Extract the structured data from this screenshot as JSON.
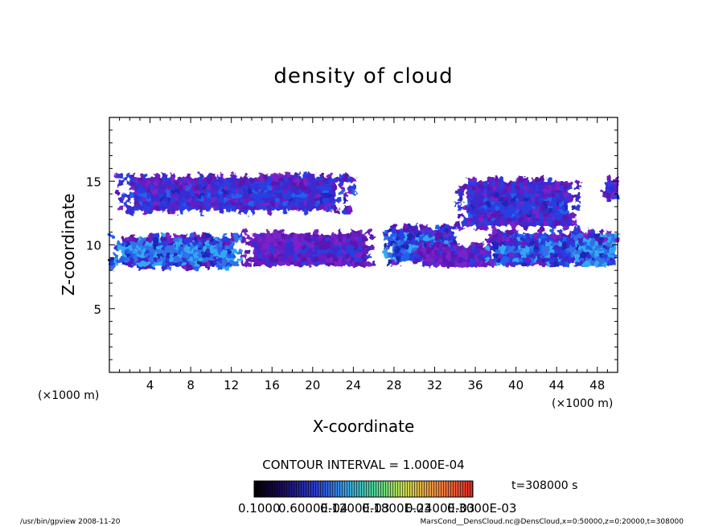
{
  "chart_data": {
    "type": "heatmap",
    "title": "density of cloud",
    "xlabel": "X-coordinate",
    "ylabel": "Z-coordinate",
    "x_unit": "(×1000 m)",
    "y_unit": "(×1000 m)",
    "x_ticks": [
      "4",
      "8",
      "12",
      "16",
      "20",
      "24",
      "28",
      "32",
      "36",
      "40",
      "44",
      "48"
    ],
    "y_ticks": [
      "5",
      "10",
      "15"
    ],
    "xlim": [
      0,
      50
    ],
    "ylim": [
      0,
      20
    ],
    "grid": false,
    "contour_interval_label": "CONTOUR INTERVAL = 1.000E-04",
    "time_label": "t=308000 s",
    "colorbar_labels": [
      "0.1000",
      "0.6000E-04",
      "0.1200E-03",
      "0.1800E-03",
      "0.2400E-03",
      "0.3000E-03"
    ],
    "colorbar_colors": [
      "#1a0033",
      "#2a1a8c",
      "#3050e0",
      "#40c0e0",
      "#60e080",
      "#d0e040",
      "#f08030",
      "#e02020"
    ],
    "regions": [
      {
        "x": [
          0.5,
          24
        ],
        "z": [
          12.6,
          15.6
        ],
        "level": 0.2
      },
      {
        "x": [
          0,
          13
        ],
        "z": [
          8.3,
          10.9
        ],
        "level": 0.45
      },
      {
        "x": [
          13,
          26
        ],
        "z": [
          8.4,
          11.2
        ],
        "level": 0.12
      },
      {
        "x": [
          27,
          34
        ],
        "z": [
          8.6,
          11.6
        ],
        "level": 0.3
      },
      {
        "x": [
          30,
          38
        ],
        "z": [
          8.4,
          10.2
        ],
        "level": 0.12
      },
      {
        "x": [
          34,
          46
        ],
        "z": [
          11.5,
          15.3
        ],
        "level": 0.2
      },
      {
        "x": [
          37,
          46
        ],
        "z": [
          8.4,
          11.2
        ],
        "level": 0.3
      },
      {
        "x": [
          45,
          50
        ],
        "z": [
          8.4,
          11.2
        ],
        "level": 0.45
      },
      {
        "x": [
          48.5,
          50
        ],
        "z": [
          13.6,
          15.3
        ],
        "level": 0.15
      }
    ]
  },
  "footer": {
    "left": "/usr/bin/gpview   2008-11-20",
    "right": "MarsCond__DensCloud.nc@DensCloud,x=0:50000,z=0:20000,t=308000"
  }
}
